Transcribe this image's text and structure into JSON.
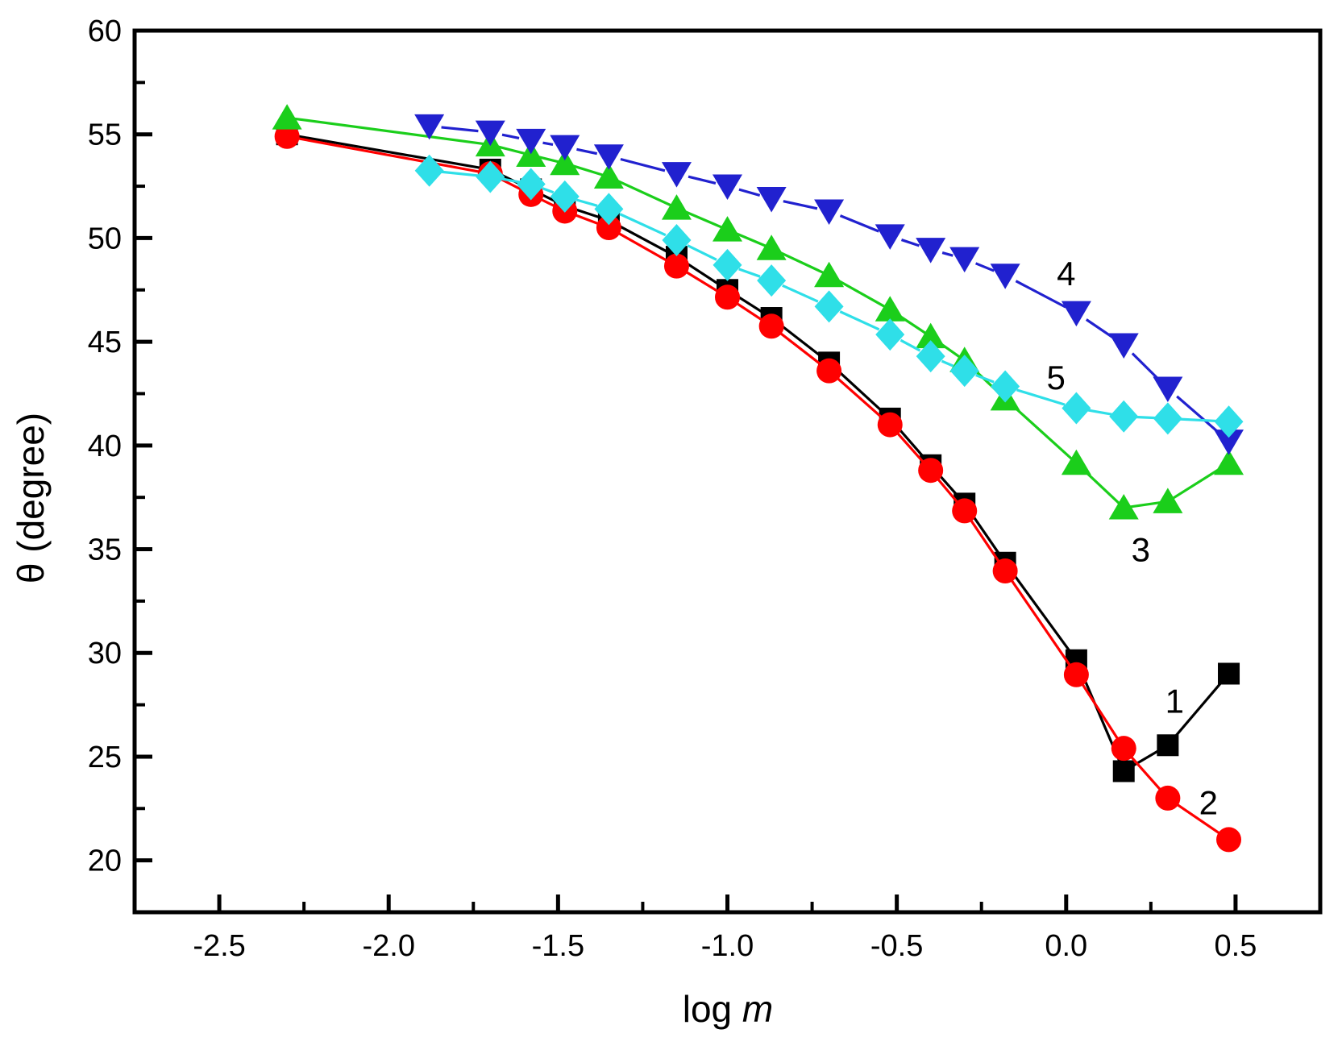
{
  "chart_data": {
    "type": "line",
    "title": "",
    "xlabel": "log m",
    "xlabel_parts": {
      "prefix": "log ",
      "italic": "m"
    },
    "ylabel": "θ (degree)",
    "xlim": [
      -2.75,
      0.75
    ],
    "ylim": [
      17.5,
      60
    ],
    "grid": false,
    "legend_position": "none (series identified by numeric labels on plot)",
    "x_major_ticks": [
      -2.5,
      -2.0,
      -1.5,
      -1.0,
      -0.5,
      0.0,
      0.5
    ],
    "x_major_tick_labels": [
      "-2.5",
      "-2.0",
      "-1.5",
      "-1.0",
      "-0.5",
      "0.0",
      "0.5"
    ],
    "x_minor_ticks": [
      -2.25,
      -1.75,
      -1.25,
      -0.75,
      -0.25,
      0.25
    ],
    "y_major_ticks": [
      20,
      25,
      30,
      35,
      40,
      45,
      50,
      55,
      60
    ],
    "y_major_tick_labels": [
      "20",
      "25",
      "30",
      "35",
      "40",
      "45",
      "50",
      "55",
      "60"
    ],
    "y_minor_ticks": [
      22.5,
      27.5,
      32.5,
      37.5,
      42.5,
      47.5,
      52.5,
      57.5
    ],
    "series": [
      {
        "name": "1",
        "marker": "square",
        "color": "#000000",
        "line_style": "solid",
        "label_x": 0.32,
        "label_y": 27.7,
        "points": [
          [
            -2.3,
            55.0
          ],
          [
            -1.7,
            53.3
          ],
          [
            -1.58,
            52.35
          ],
          [
            -1.48,
            51.55
          ],
          [
            -1.35,
            50.85
          ],
          [
            -1.15,
            49.1
          ],
          [
            -1.0,
            47.5
          ],
          [
            -0.87,
            46.15
          ],
          [
            -0.7,
            44.0
          ],
          [
            -0.52,
            41.3
          ],
          [
            -0.4,
            39.05
          ],
          [
            -0.3,
            37.2
          ],
          [
            -0.18,
            34.35
          ],
          [
            0.03,
            29.65
          ],
          [
            0.17,
            24.3
          ],
          [
            0.3,
            25.55
          ],
          [
            0.48,
            29.0
          ]
        ]
      },
      {
        "name": "2",
        "marker": "circle",
        "color": "#FF0000",
        "line_style": "solid",
        "label_x": 0.42,
        "label_y": 22.8,
        "points": [
          [
            -2.3,
            54.9
          ],
          [
            -1.7,
            53.1
          ],
          [
            -1.58,
            52.1
          ],
          [
            -1.48,
            51.3
          ],
          [
            -1.35,
            50.5
          ],
          [
            -1.15,
            48.65
          ],
          [
            -1.0,
            47.15
          ],
          [
            -0.87,
            45.75
          ],
          [
            -0.7,
            43.6
          ],
          [
            -0.52,
            41.0
          ],
          [
            -0.4,
            38.8
          ],
          [
            -0.3,
            36.85
          ],
          [
            -0.18,
            33.95
          ],
          [
            0.03,
            28.95
          ],
          [
            0.17,
            25.4
          ],
          [
            0.3,
            23.0
          ],
          [
            0.48,
            21.0
          ]
        ]
      },
      {
        "name": "3",
        "marker": "triangle-up",
        "color": "#1BCE1B",
        "line_style": "solid",
        "label_x": 0.22,
        "label_y": 35.0,
        "points": [
          [
            -2.3,
            55.8
          ],
          [
            -1.7,
            54.5
          ],
          [
            -1.58,
            54.0
          ],
          [
            -1.48,
            53.6
          ],
          [
            -1.35,
            52.95
          ],
          [
            -1.15,
            51.45
          ],
          [
            -1.0,
            50.4
          ],
          [
            -0.87,
            49.5
          ],
          [
            -0.7,
            48.2
          ],
          [
            -0.52,
            46.55
          ],
          [
            -0.4,
            45.25
          ],
          [
            -0.3,
            44.1
          ],
          [
            -0.18,
            42.25
          ],
          [
            0.03,
            39.15
          ],
          [
            0.17,
            37.0
          ],
          [
            0.3,
            37.3
          ],
          [
            0.48,
            39.15
          ]
        ]
      },
      {
        "name": "4",
        "marker": "triangle-down",
        "color": "#2121CF",
        "line_style": "broken-dash",
        "label_x": 0.0,
        "label_y": 48.3,
        "points": [
          [
            -1.88,
            55.4
          ],
          [
            -1.7,
            55.1
          ],
          [
            -1.58,
            54.7
          ],
          [
            -1.48,
            54.4
          ],
          [
            -1.35,
            53.95
          ],
          [
            -1.15,
            53.1
          ],
          [
            -1.0,
            52.5
          ],
          [
            -0.87,
            51.9
          ],
          [
            -0.7,
            51.3
          ],
          [
            -0.52,
            50.1
          ],
          [
            -0.4,
            49.45
          ],
          [
            -0.3,
            49.0
          ],
          [
            -0.18,
            48.2
          ],
          [
            0.03,
            46.4
          ],
          [
            0.17,
            44.85
          ],
          [
            0.3,
            42.75
          ],
          [
            0.48,
            40.2
          ]
        ]
      },
      {
        "name": "5",
        "marker": "diamond",
        "color": "#2FDFE8",
        "line_style": "broken-dash",
        "label_x": -0.03,
        "label_y": 43.3,
        "points": [
          [
            -1.88,
            53.25
          ],
          [
            -1.7,
            52.95
          ],
          [
            -1.58,
            52.6
          ],
          [
            -1.48,
            52.0
          ],
          [
            -1.35,
            51.4
          ],
          [
            -1.15,
            49.9
          ],
          [
            -1.0,
            48.7
          ],
          [
            -0.87,
            47.95
          ],
          [
            -0.7,
            46.7
          ],
          [
            -0.52,
            45.35
          ],
          [
            -0.4,
            44.3
          ],
          [
            -0.3,
            43.6
          ],
          [
            -0.18,
            42.85
          ],
          [
            0.03,
            41.8
          ],
          [
            0.17,
            41.4
          ],
          [
            0.3,
            41.3
          ],
          [
            0.48,
            41.15
          ]
        ]
      }
    ]
  }
}
